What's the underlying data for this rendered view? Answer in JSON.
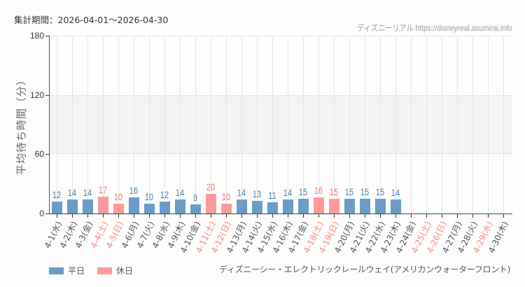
{
  "header": {
    "period_label": "集計期間：2026-04-01～2026-04-30",
    "credit": "ディズニーリアル https://disneyreal.asumirai.info"
  },
  "legend": {
    "items": [
      {
        "label": "平日",
        "color": "#6c9bc7"
      },
      {
        "label": "休日",
        "color": "#ff9a9a"
      }
    ]
  },
  "footer": {
    "attraction": "ディズニーシー・エレクトリックレールウェイ(アメリカンウォーターフロント)"
  },
  "colors": {
    "weekday_bar": "#6c9bc7",
    "holiday_bar": "#ff9a9a",
    "weekday_value": "#4a7db3",
    "holiday_value": "#f27575",
    "weekday_label": "#555555",
    "holiday_label": "#ff8585"
  },
  "chart_data": {
    "type": "bar",
    "title": "集計期間：2026-04-01～2026-04-30",
    "xlabel": "",
    "ylabel": "平均待ち時間（分）",
    "ylim": [
      0,
      180
    ],
    "yticks": [
      0,
      60,
      120,
      180
    ],
    "shaded_band": [
      60,
      120
    ],
    "grid": true,
    "legend_position": "bottom-left",
    "categories": [
      "4-1(水)",
      "4-2(木)",
      "4-3(金)",
      "4-4(土)",
      "4-5(日)",
      "4-6(月)",
      "4-7(火)",
      "4-8(水)",
      "4-9(木)",
      "4-10(金)",
      "4-11(土)",
      "4-12(日)",
      "4-13(月)",
      "4-14(火)",
      "4-15(水)",
      "4-16(木)",
      "4-17(金)",
      "4-18(土)",
      "4-19(日)",
      "4-20(月)",
      "4-21(火)",
      "4-22(水)",
      "4-23(木)",
      "4-24(金)",
      "4-25(土)",
      "4-26(日)",
      "4-27(月)",
      "4-28(火)",
      "4-29(水)",
      "4-30(木)"
    ],
    "values": [
      12,
      14,
      14,
      17,
      10,
      16,
      10,
      12,
      14,
      9,
      20,
      10,
      14,
      13,
      11,
      14,
      15,
      16,
      15,
      15,
      15,
      15,
      14,
      null,
      null,
      null,
      null,
      null,
      null,
      null
    ],
    "holiday": [
      false,
      false,
      false,
      true,
      true,
      false,
      false,
      false,
      false,
      false,
      true,
      true,
      false,
      false,
      false,
      false,
      false,
      true,
      true,
      false,
      false,
      false,
      false,
      false,
      true,
      true,
      false,
      false,
      true,
      false
    ],
    "series": [
      {
        "name": "平日",
        "values": [
          12,
          14,
          14,
          null,
          null,
          16,
          10,
          12,
          14,
          9,
          null,
          null,
          14,
          13,
          11,
          14,
          15,
          null,
          null,
          15,
          15,
          15,
          14,
          null,
          null,
          null,
          null,
          null,
          null,
          null
        ]
      },
      {
        "name": "休日",
        "values": [
          null,
          null,
          null,
          17,
          10,
          null,
          null,
          null,
          null,
          null,
          20,
          10,
          null,
          null,
          null,
          null,
          null,
          16,
          15,
          null,
          null,
          null,
          null,
          null,
          null,
          null,
          null,
          null,
          null,
          null
        ]
      }
    ]
  }
}
